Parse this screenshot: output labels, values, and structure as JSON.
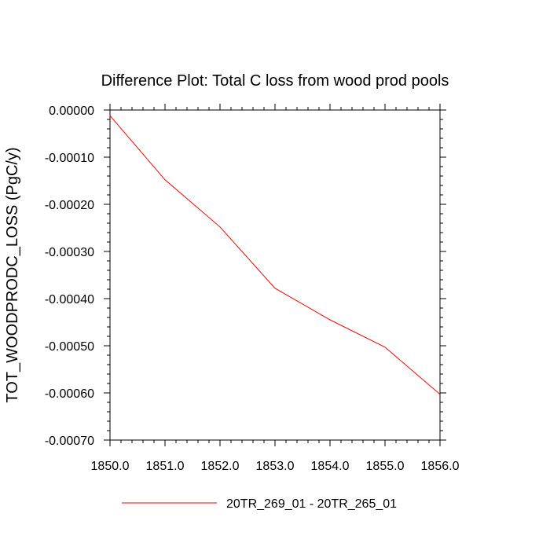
{
  "chart_data": {
    "type": "line",
    "title": "Difference Plot: Total C loss from wood prod pools",
    "xlabel": "",
    "ylabel": "TOT_WOODPRODC_LOSS  (PgC/y)",
    "xlim": [
      1850.0,
      1856.0
    ],
    "ylim": [
      -0.0007,
      0.0
    ],
    "x_ticks": [
      "1850.0",
      "1851.0",
      "1852.0",
      "1853.0",
      "1854.0",
      "1855.0",
      "1856.0"
    ],
    "x_tick_values": [
      1850,
      1851,
      1852,
      1853,
      1854,
      1855,
      1856
    ],
    "y_ticks": [
      "0.00000",
      "-0.00010",
      "-0.00020",
      "-0.00030",
      "-0.00040",
      "-0.00050",
      "-0.00060",
      "-0.00070"
    ],
    "y_tick_values": [
      0.0,
      -0.0001,
      -0.0002,
      -0.0003,
      -0.0004,
      -0.0005,
      -0.0006,
      -0.0007
    ],
    "grid": false,
    "legend_position": "bottom-center",
    "series": [
      {
        "name": "20TR_269_01 - 20TR_265_01",
        "color": "#ff0000",
        "x": [
          1850,
          1851,
          1852,
          1853,
          1854,
          1855,
          1856
        ],
        "y": [
          -1.2e-05,
          -0.000148,
          -0.000248,
          -0.000378,
          -0.000445,
          -0.000503,
          -0.000603
        ]
      }
    ]
  }
}
